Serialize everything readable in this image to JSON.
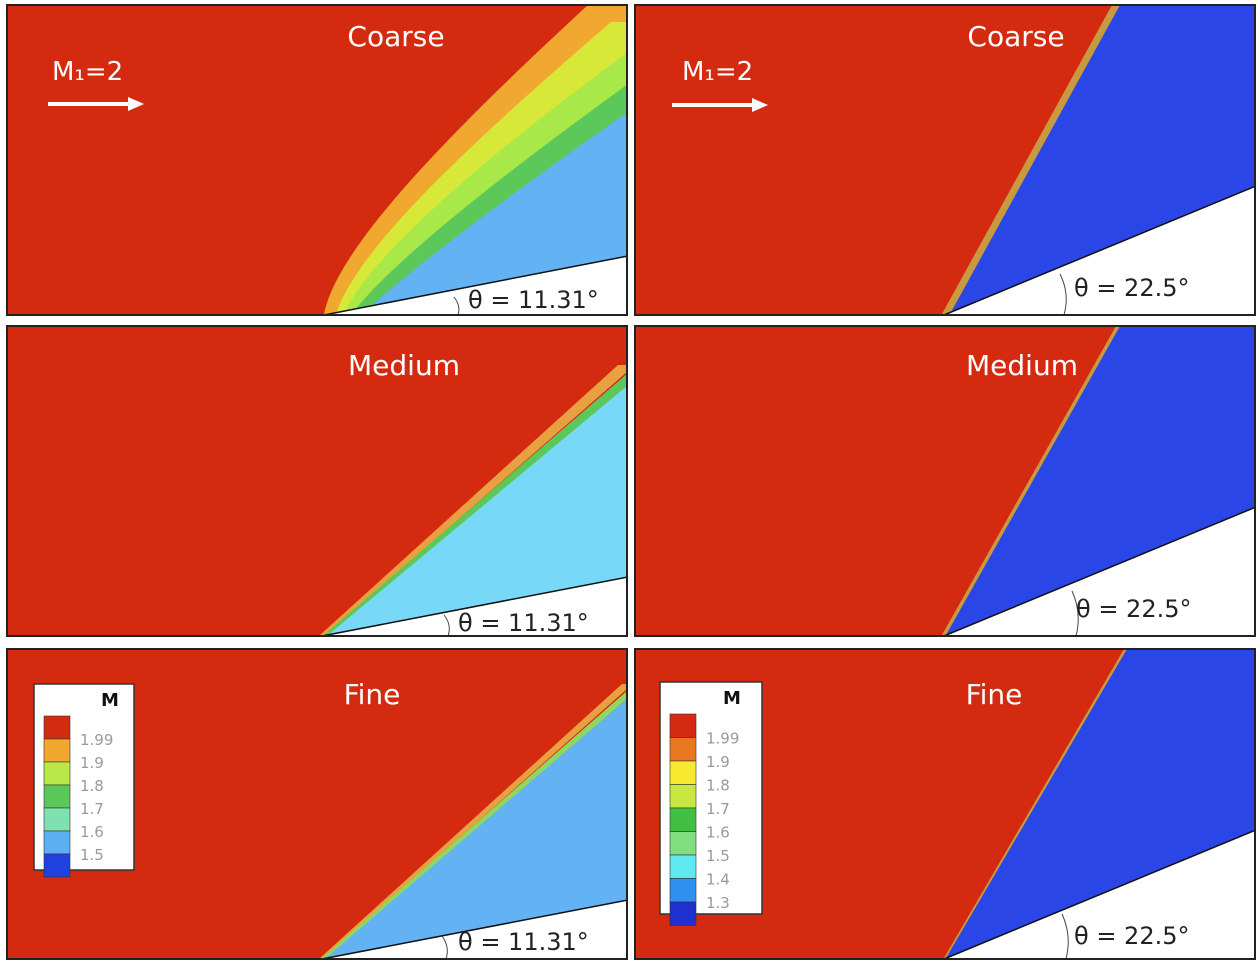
{
  "panels": [
    {
      "id": "left-coarse",
      "grid_label": "Coarse",
      "angle_label": "θ = 11.31°",
      "flow_label": "M₁=2",
      "wedge_angle_deg": 11.31
    },
    {
      "id": "right-coarse",
      "grid_label": "Coarse",
      "angle_label": "θ = 22.5°",
      "flow_label": "M₁=2",
      "wedge_angle_deg": 22.5
    },
    {
      "id": "left-medium",
      "grid_label": "Medium",
      "angle_label": "θ = 11.31°",
      "wedge_angle_deg": 11.31
    },
    {
      "id": "right-medium",
      "grid_label": "Medium",
      "angle_label": "θ = 22.5°",
      "wedge_angle_deg": 22.5
    },
    {
      "id": "left-fine",
      "grid_label": "Fine",
      "angle_label": "θ = 11.31°",
      "wedge_angle_deg": 11.31
    },
    {
      "id": "right-fine",
      "grid_label": "Fine",
      "angle_label": "θ = 22.5°",
      "wedge_angle_deg": 22.5
    }
  ],
  "legends": {
    "left": {
      "title": "M",
      "levels": [
        {
          "value": "1.99",
          "color": "#d42a10"
        },
        {
          "value": "1.9",
          "color": "#f0a830"
        },
        {
          "value": "1.8",
          "color": "#b8e84a"
        },
        {
          "value": "1.7",
          "color": "#5cc85a"
        },
        {
          "value": "1.6",
          "color": "#80e0b0"
        },
        {
          "value": "1.5",
          "color": "#5cb0f0"
        },
        {
          "value": "",
          "color": "#2040e0"
        }
      ]
    },
    "right": {
      "title": "M",
      "levels": [
        {
          "value": "1.99",
          "color": "#d42a10"
        },
        {
          "value": "1.9",
          "color": "#e87820"
        },
        {
          "value": "1.8",
          "color": "#f8e830"
        },
        {
          "value": "1.7",
          "color": "#c8e840"
        },
        {
          "value": "1.6",
          "color": "#40c040"
        },
        {
          "value": "1.5",
          "color": "#80e080"
        },
        {
          "value": "1.4",
          "color": "#60e8f0"
        },
        {
          "value": "1.3",
          "color": "#3090f0"
        },
        {
          "value": "",
          "color": "#2030d0"
        }
      ]
    }
  },
  "colors": {
    "freestream": "#d42a10",
    "post_shock_small_angle": "#62b2f4",
    "post_shock_medium_small_angle": "#78d8f8",
    "post_shock_large_angle": "#2a46e6",
    "band_orange": "#f0a830",
    "band_yellow": "#d8e838",
    "band_green": "#5cc85a",
    "band_lightgreen": "#a8e848"
  }
}
